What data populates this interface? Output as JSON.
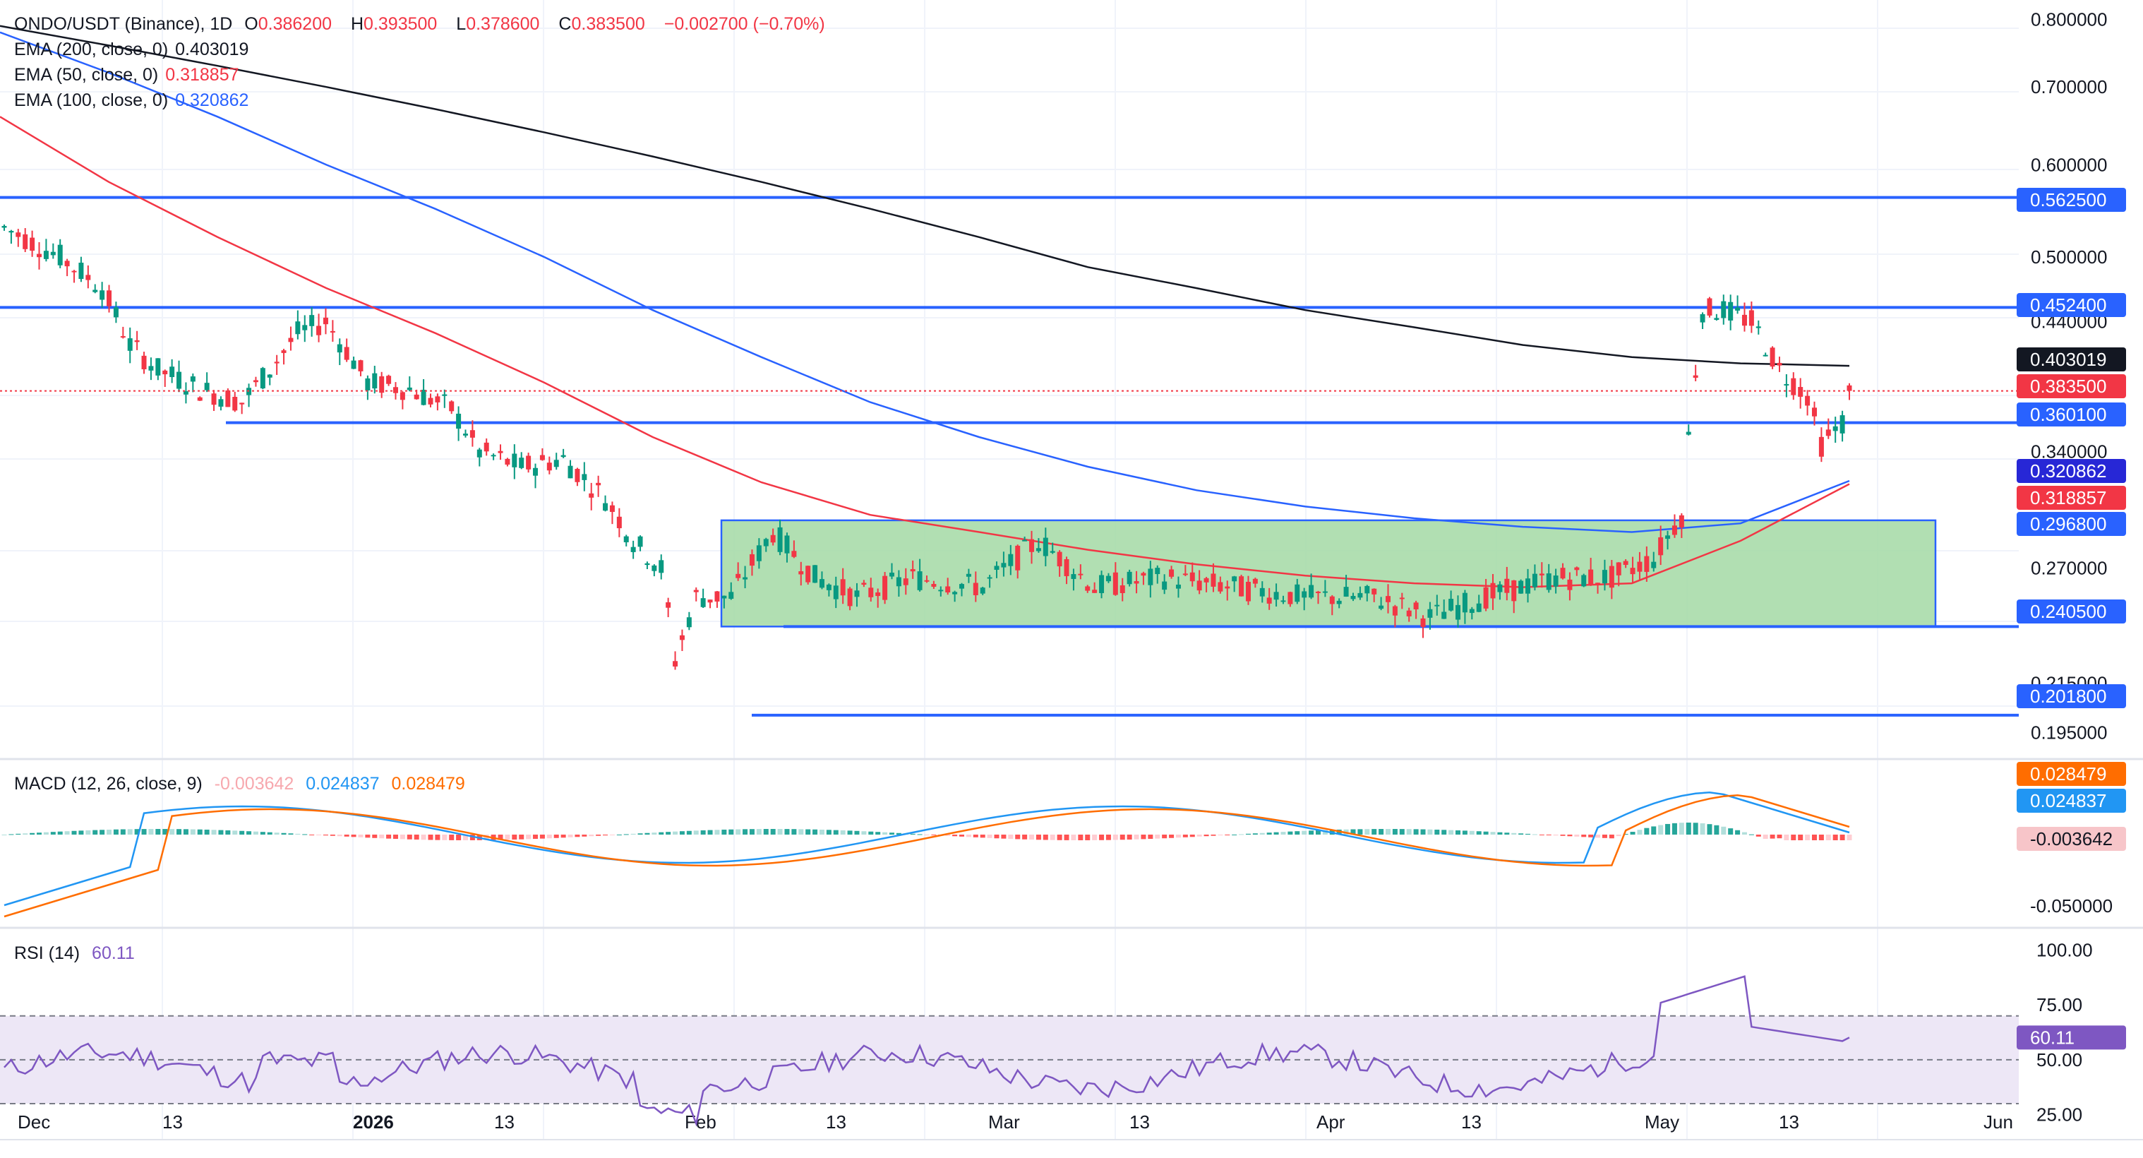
{
  "colors": {
    "bull": "#089981",
    "bear": "#f23645",
    "ema200": "#131722",
    "ema50": "#f23645",
    "ema100": "#2962ff",
    "level": "#2962ff",
    "zone_fill": "#a3d9a5",
    "macd": "#2196f3",
    "signal": "#ff6d00",
    "rsi": "#7e57c2",
    "rsi_band": "#ede7f6",
    "grid": "#f0f3fa"
  },
  "legend": {
    "symbol": "ONDO/USDT (Binance), 1D",
    "open_label": "O",
    "open": "0.386200",
    "high_label": "H",
    "high": "0.393500",
    "low_label": "L",
    "low": "0.378600",
    "close_label": "C",
    "close": "0.383500",
    "change": "−0.002700 (−0.70%)",
    "ema200_label": "EMA (200, close, 0)",
    "ema200_value": "0.403019",
    "ema50_label": "EMA (50, close, 0)",
    "ema50_value": "0.318857",
    "ema100_label": "EMA (100, close, 0)",
    "ema100_value": "0.320862",
    "macd_label": "MACD (12, 26, close, 9)",
    "macd_hist": "-0.003642",
    "macd_value": "0.024837",
    "macd_signal": "0.028479",
    "rsi_label": "RSI (14)",
    "rsi_value": "60.11"
  },
  "chart_data": {
    "type": "candlestick",
    "price_axis_ticks": [
      "0.800000",
      "0.700000",
      "0.600000",
      "0.500000",
      "0.440000",
      "0.340000",
      "0.270000",
      "0.215000",
      "0.195000"
    ],
    "price_tags": [
      {
        "label": "0.562500",
        "role": "level"
      },
      {
        "label": "0.452400",
        "role": "level"
      },
      {
        "label": "0.403019",
        "role": "ema200"
      },
      {
        "label": "0.383500",
        "role": "last"
      },
      {
        "label": "0.360100",
        "role": "level"
      },
      {
        "label": "0.320862",
        "role": "ema100"
      },
      {
        "label": "0.318857",
        "role": "ema50"
      },
      {
        "label": "0.296800",
        "role": "level"
      },
      {
        "label": "0.240500",
        "role": "level"
      },
      {
        "label": "0.201800",
        "role": "level"
      }
    ],
    "x_labels": [
      "Dec",
      "13",
      "2026",
      "13",
      "Feb",
      "13",
      "Mar",
      "13",
      "Apr",
      "13",
      "May",
      "13",
      "Jun"
    ],
    "horizontal_levels": [
      0.5625,
      0.4524,
      0.3601,
      0.2018
    ],
    "range_box": {
      "top": 0.2968,
      "bottom": 0.2405
    },
    "ema200": [
      0.79,
      0.76,
      0.73,
      0.7,
      0.67,
      0.64,
      0.61,
      0.58,
      0.55,
      0.52,
      0.49,
      0.47,
      0.45,
      0.435,
      0.42,
      0.41,
      0.405,
      0.403
    ],
    "ema100": [
      0.78,
      0.72,
      0.66,
      0.6,
      0.55,
      0.5,
      0.45,
      0.41,
      0.375,
      0.35,
      0.33,
      0.315,
      0.305,
      0.298,
      0.293,
      0.29,
      0.295,
      0.3209
    ],
    "ema50": [
      0.66,
      0.58,
      0.52,
      0.47,
      0.43,
      0.39,
      0.35,
      0.32,
      0.3,
      0.29,
      0.28,
      0.272,
      0.266,
      0.262,
      0.26,
      0.262,
      0.285,
      0.3189
    ],
    "macd_axis_ticks": [
      "0.028479",
      "0.024837",
      "-0.003642",
      "-0.050000"
    ],
    "rsi_axis_ticks": [
      "100.00",
      "75.00",
      "50.00",
      "25.00"
    ],
    "rsi_levels": [
      70,
      50,
      30
    ]
  }
}
